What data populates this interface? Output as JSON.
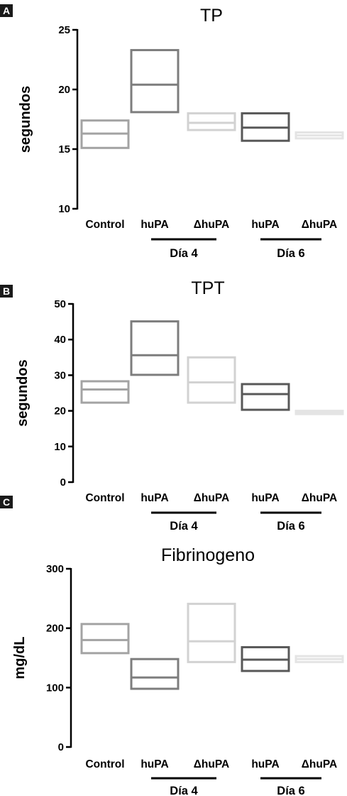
{
  "panel_letters": [
    "A",
    "B",
    "C"
  ],
  "group_labels": [
    "Día 4",
    "Día 6"
  ],
  "colors": {
    "Control": "#a3a3a3",
    "huPA_d4": "#7d7d7d",
    "dhuPA_d4": "#d2d2d2",
    "huPA_d6": "#585858",
    "dhuPA_d6": "#e4e4e4"
  },
  "chart_data": [
    {
      "type": "box",
      "panel": "A",
      "title": "TP",
      "ylabel": "segundos",
      "xlabel": "",
      "ylim": [
        10,
        25
      ],
      "yticks": [
        "10",
        "15",
        "20",
        "25"
      ],
      "categories": [
        "Control",
        "huPA",
        "ΔhuPA",
        "huPA",
        "ΔhuPA"
      ],
      "groups": [
        {
          "label": "Día 4",
          "members": [
            1,
            2
          ]
        },
        {
          "label": "Día 6",
          "members": [
            3,
            4
          ]
        }
      ],
      "boxes": [
        {
          "low": 15.1,
          "mid": 16.3,
          "high": 17.4
        },
        {
          "low": 18.1,
          "mid": 20.4,
          "high": 23.3
        },
        {
          "low": 16.6,
          "mid": 17.2,
          "high": 18.0
        },
        {
          "low": 15.7,
          "mid": 16.8,
          "high": 18.0
        },
        {
          "low": 15.9,
          "mid": 16.15,
          "high": 16.4
        }
      ]
    },
    {
      "type": "box",
      "panel": "B",
      "title": "TPT",
      "ylabel": "segundos",
      "xlabel": "",
      "ylim": [
        0,
        50
      ],
      "yticks": [
        "0",
        "10",
        "20",
        "30",
        "40",
        "50"
      ],
      "categories": [
        "Control",
        "huPA",
        "ΔhuPA",
        "huPA",
        "ΔhuPA"
      ],
      "groups": [
        {
          "label": "Día 4",
          "members": [
            1,
            2
          ]
        },
        {
          "label": "Día 6",
          "members": [
            3,
            4
          ]
        }
      ],
      "boxes": [
        {
          "low": 22.3,
          "mid": 26.0,
          "high": 28.3
        },
        {
          "low": 30.1,
          "mid": 35.6,
          "high": 45.1
        },
        {
          "low": 22.3,
          "mid": 28.0,
          "high": 35.0
        },
        {
          "low": 20.3,
          "mid": 24.7,
          "high": 27.5
        },
        {
          "low": 19.1,
          "mid": 19.55,
          "high": 20.0
        }
      ]
    },
    {
      "type": "box",
      "panel": "C",
      "title": "Fibrinogeno",
      "ylabel": "mg/dL",
      "xlabel": "",
      "ylim": [
        0,
        300
      ],
      "yticks": [
        "0",
        "100",
        "200",
        "300"
      ],
      "categories": [
        "Control",
        "huPA",
        "ΔhuPA",
        "huPA",
        "ΔhuPA"
      ],
      "groups": [
        {
          "label": "Día 4",
          "members": [
            1,
            2
          ]
        },
        {
          "label": "Día 6",
          "members": [
            3,
            4
          ]
        }
      ],
      "boxes": [
        {
          "low": 158,
          "mid": 180,
          "high": 207
        },
        {
          "low": 98,
          "mid": 117,
          "high": 148
        },
        {
          "low": 143,
          "mid": 178,
          "high": 241
        },
        {
          "low": 128,
          "mid": 147,
          "high": 168
        },
        {
          "low": 143,
          "mid": 148,
          "high": 153
        }
      ]
    }
  ]
}
